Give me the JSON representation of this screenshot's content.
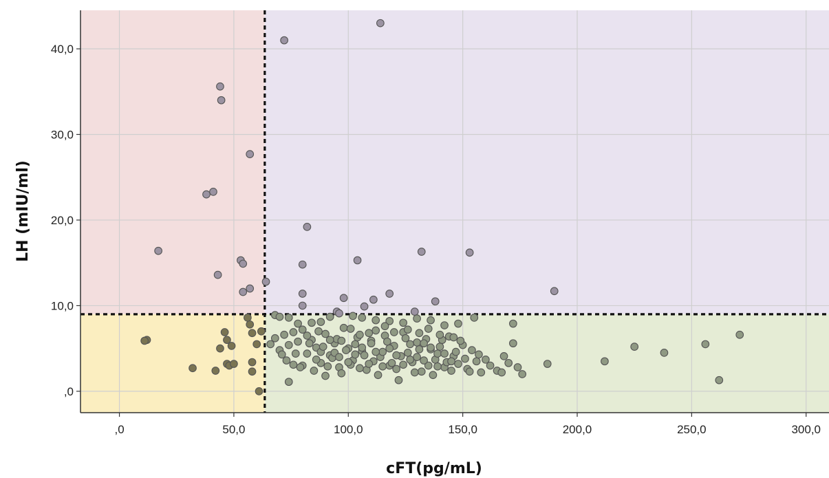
{
  "chart_data": {
    "type": "scatter",
    "title": "",
    "xlabel": "cFT(pg/mL)",
    "ylabel": "LH (mIU/ml)",
    "xlim": [
      -17,
      310
    ],
    "ylim": [
      -2.5,
      44.5
    ],
    "xticks": [
      0,
      50,
      100,
      150,
      200,
      250,
      300
    ],
    "xtick_labels": [
      ",0",
      "50,0",
      "100,0",
      "150,0",
      "200,0",
      "250,0",
      "300,0"
    ],
    "yticks": [
      0,
      10,
      20,
      30,
      40
    ],
    "ytick_labels": [
      ",0",
      "10,0",
      "20,0",
      "30,0",
      "40,0"
    ],
    "grid": true,
    "legend": "none",
    "thresholds": {
      "x": 63.5,
      "y": 9.0
    },
    "quadrant_colors": {
      "low_x_high_y": "#f3dede",
      "high_x_high_y": "#e9e3f0",
      "low_x_low_y": "#fbeec0",
      "high_x_low_y": "#e5ecd5"
    },
    "point_colors": {
      "high_y": "#9b93a2",
      "low_x_low_y": "#7a7452",
      "high_x_low_y": "#8f9983",
      "stroke": "#555555"
    },
    "points": [
      [
        17,
        16.4
      ],
      [
        44,
        35.6
      ],
      [
        44.5,
        34.0
      ],
      [
        57,
        27.7
      ],
      [
        38,
        23.0
      ],
      [
        41,
        23.3
      ],
      [
        43,
        13.6
      ],
      [
        53,
        15.3
      ],
      [
        54,
        14.9
      ],
      [
        54,
        11.6
      ],
      [
        57,
        12.0
      ],
      [
        12,
        6.0
      ],
      [
        11,
        5.9
      ],
      [
        32,
        2.7
      ],
      [
        42,
        2.4
      ],
      [
        44,
        5.0
      ],
      [
        46,
        6.9
      ],
      [
        47,
        6.0
      ],
      [
        49,
        5.3
      ],
      [
        47,
        3.2
      ],
      [
        48,
        3.0
      ],
      [
        50,
        3.2
      ],
      [
        56,
        8.6
      ],
      [
        57,
        7.8
      ],
      [
        58,
        6.8
      ],
      [
        60,
        5.5
      ],
      [
        58,
        3.4
      ],
      [
        58,
        2.3
      ],
      [
        61,
        0.0
      ],
      [
        62,
        7.0
      ],
      [
        72,
        41.0
      ],
      [
        114,
        43.0
      ],
      [
        64,
        12.8
      ],
      [
        80,
        14.8
      ],
      [
        82,
        19.2
      ],
      [
        80,
        11.4
      ],
      [
        80,
        10.0
      ],
      [
        98,
        10.9
      ],
      [
        104,
        15.3
      ],
      [
        107,
        9.9
      ],
      [
        111,
        10.7
      ],
      [
        118,
        11.4
      ],
      [
        132,
        16.3
      ],
      [
        138,
        10.5
      ],
      [
        153,
        16.2
      ],
      [
        190,
        11.7
      ],
      [
        129,
        9.3
      ],
      [
        95,
        9.3
      ],
      [
        68,
        8.9
      ],
      [
        70,
        8.7
      ],
      [
        74,
        8.6
      ],
      [
        78,
        7.9
      ],
      [
        84,
        8.0
      ],
      [
        88,
        8.1
      ],
      [
        92,
        8.7
      ],
      [
        96,
        9.1
      ],
      [
        102,
        8.8
      ],
      [
        106,
        8.6
      ],
      [
        112,
        8.3
      ],
      [
        118,
        8.2
      ],
      [
        124,
        8.0
      ],
      [
        130,
        8.5
      ],
      [
        136,
        8.3
      ],
      [
        142,
        7.7
      ],
      [
        148,
        7.9
      ],
      [
        155,
        8.6
      ],
      [
        172,
        7.9
      ],
      [
        66,
        5.5
      ],
      [
        68,
        6.2
      ],
      [
        70,
        4.8
      ],
      [
        72,
        6.6
      ],
      [
        74,
        5.4
      ],
      [
        76,
        3.1
      ],
      [
        74,
        1.1
      ],
      [
        78,
        5.8
      ],
      [
        80,
        7.2
      ],
      [
        82,
        4.4
      ],
      [
        84,
        6.0
      ],
      [
        86,
        5.1
      ],
      [
        88,
        3.3
      ],
      [
        90,
        6.7
      ],
      [
        92,
        4.2
      ],
      [
        94,
        5.6
      ],
      [
        96,
        2.8
      ],
      [
        98,
        7.4
      ],
      [
        100,
        5.0
      ],
      [
        102,
        3.6
      ],
      [
        104,
        6.3
      ],
      [
        106,
        4.7
      ],
      [
        108,
        2.5
      ],
      [
        110,
        5.9
      ],
      [
        112,
        7.1
      ],
      [
        114,
        4.0
      ],
      [
        116,
        6.5
      ],
      [
        118,
        3.0
      ],
      [
        120,
        5.3
      ],
      [
        122,
        1.3
      ],
      [
        124,
        6.9
      ],
      [
        126,
        4.5
      ],
      [
        128,
        3.4
      ],
      [
        130,
        5.7
      ],
      [
        132,
        2.3
      ],
      [
        134,
        6.1
      ],
      [
        136,
        4.9
      ],
      [
        138,
        3.7
      ],
      [
        140,
        5.2
      ],
      [
        142,
        2.8
      ],
      [
        144,
        6.4
      ],
      [
        146,
        4.1
      ],
      [
        148,
        3.2
      ],
      [
        150,
        5.4
      ],
      [
        152,
        2.6
      ],
      [
        154,
        4.8
      ],
      [
        156,
        3.5
      ],
      [
        158,
        2.2
      ],
      [
        160,
        3.7
      ],
      [
        165,
        2.4
      ],
      [
        168,
        4.1
      ],
      [
        170,
        3.3
      ],
      [
        172,
        5.6
      ],
      [
        174,
        2.8
      ],
      [
        176,
        2.0
      ],
      [
        187,
        3.2
      ],
      [
        212,
        3.5
      ],
      [
        225,
        5.2
      ],
      [
        238,
        4.5
      ],
      [
        256,
        5.5
      ],
      [
        262,
        1.3
      ],
      [
        271,
        6.6
      ],
      [
        80,
        3.0
      ],
      [
        85,
        2.4
      ],
      [
        88,
        4.6
      ],
      [
        90,
        1.8
      ],
      [
        93,
        3.9
      ],
      [
        95,
        6.1
      ],
      [
        97,
        2.1
      ],
      [
        99,
        4.8
      ],
      [
        101,
        3.1
      ],
      [
        103,
        5.5
      ],
      [
        105,
        2.7
      ],
      [
        107,
        4.2
      ],
      [
        109,
        6.8
      ],
      [
        111,
        3.5
      ],
      [
        113,
        1.9
      ],
      [
        115,
        4.6
      ],
      [
        117,
        5.8
      ],
      [
        119,
        3.3
      ],
      [
        121,
        2.6
      ],
      [
        123,
        4.1
      ],
      [
        125,
        6.2
      ],
      [
        127,
        3.7
      ],
      [
        129,
        2.2
      ],
      [
        131,
        4.9
      ],
      [
        133,
        5.6
      ],
      [
        135,
        3.0
      ],
      [
        137,
        1.9
      ],
      [
        139,
        4.4
      ],
      [
        141,
        6.0
      ],
      [
        143,
        3.4
      ],
      [
        145,
        2.4
      ],
      [
        147,
        4.6
      ],
      [
        149,
        5.9
      ],
      [
        151,
        3.8
      ],
      [
        153,
        2.3
      ],
      [
        157,
        4.3
      ],
      [
        162,
        3.0
      ],
      [
        167,
        2.2
      ],
      [
        82,
        6.5
      ],
      [
        86,
        3.7
      ],
      [
        89,
        5.2
      ],
      [
        91,
        2.9
      ],
      [
        94,
        4.5
      ],
      [
        97,
        5.9
      ],
      [
        100,
        3.4
      ],
      [
        103,
        4.3
      ],
      [
        106,
        5.1
      ],
      [
        109,
        3.2
      ],
      [
        112,
        4.6
      ],
      [
        115,
        2.9
      ],
      [
        118,
        5.0
      ],
      [
        121,
        4.2
      ],
      [
        124,
        3.1
      ],
      [
        127,
        5.5
      ],
      [
        130,
        4.0
      ],
      [
        133,
        3.6
      ],
      [
        136,
        5.1
      ],
      [
        139,
        2.9
      ],
      [
        142,
        4.4
      ],
      [
        145,
        3.5
      ],
      [
        71,
        4.3
      ],
      [
        73,
        3.6
      ],
      [
        76,
        6.9
      ],
      [
        77,
        4.4
      ],
      [
        79,
        2.8
      ],
      [
        83,
        5.6
      ],
      [
        87,
        7.0
      ],
      [
        92,
        6.0
      ],
      [
        96,
        4.0
      ],
      [
        101,
        7.3
      ],
      [
        105,
        6.6
      ],
      [
        110,
        5.6
      ],
      [
        116,
        7.6
      ],
      [
        120,
        6.9
      ],
      [
        126,
        7.2
      ],
      [
        131,
        6.8
      ],
      [
        135,
        7.3
      ],
      [
        140,
        6.6
      ],
      [
        146,
        6.3
      ]
    ]
  }
}
